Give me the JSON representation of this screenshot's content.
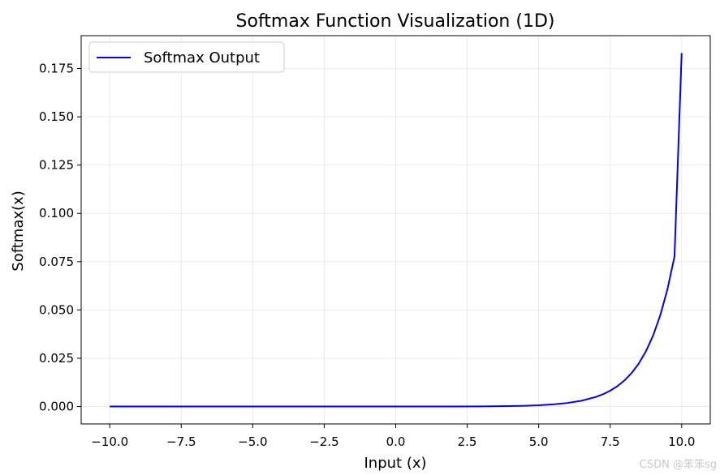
{
  "chart_data": {
    "type": "line",
    "title": "Softmax Function Visualization (1D)",
    "xlabel": "Input (x)",
    "ylabel": "Softmax(x)",
    "xlim": [
      -11,
      11
    ],
    "ylim": [
      -0.009,
      0.192
    ],
    "xticks": [
      -10.0,
      -7.5,
      -5.0,
      -2.5,
      0.0,
      2.5,
      5.0,
      7.5,
      10.0
    ],
    "xtick_labels": [
      "−10.0",
      "−7.5",
      "−5.0",
      "−2.5",
      "0.0",
      "2.5",
      "5.0",
      "7.5",
      "10.0"
    ],
    "yticks": [
      0.0,
      0.025,
      0.05,
      0.075,
      0.1,
      0.125,
      0.15,
      0.175
    ],
    "ytick_labels": [
      "0.000",
      "0.025",
      "0.050",
      "0.075",
      "0.100",
      "0.125",
      "0.150",
      "0.175"
    ],
    "grid": true,
    "legend_position": "top-left",
    "series": [
      {
        "name": "Softmax Output",
        "color": "#0000ff",
        "x": [
          -10,
          -8,
          -6,
          -4,
          -2,
          0,
          1,
          2,
          3,
          4,
          4.5,
          5,
          5.5,
          6,
          6.5,
          7,
          7.25,
          7.5,
          7.75,
          8,
          8.25,
          8.5,
          8.75,
          9,
          9.25,
          9.5,
          9.75,
          10
        ],
        "y": [
          0.0,
          0.0,
          0.0,
          0.0,
          0.0,
          0.0,
          1e-05,
          3e-05,
          9e-05,
          0.00025,
          0.00041,
          0.00067,
          0.00111,
          0.00183,
          0.00301,
          0.00497,
          0.00638,
          0.00819,
          0.01052,
          0.01351,
          0.01734,
          0.02227,
          0.0286,
          0.03672,
          0.04715,
          0.06054,
          0.07773,
          0.183
        ]
      }
    ]
  },
  "watermark": "CSDN @笨笨sg"
}
